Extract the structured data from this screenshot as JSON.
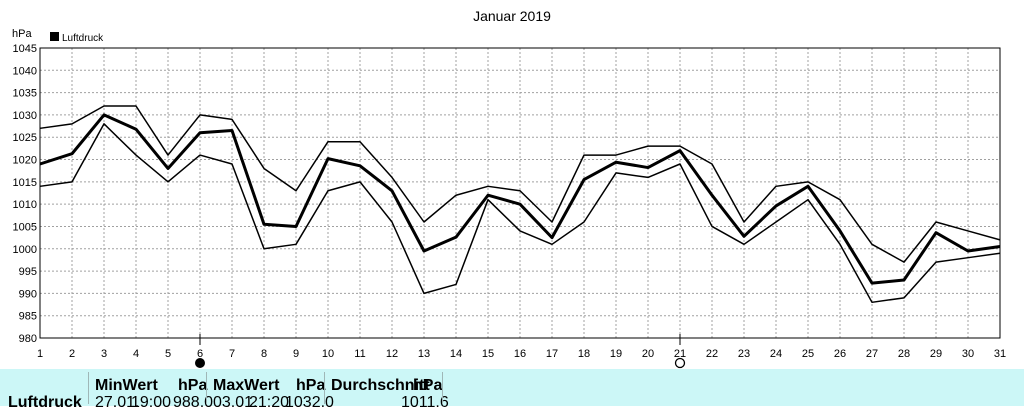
{
  "chart_data": {
    "type": "line",
    "title": "Januar 2019",
    "ylabel": "hPa",
    "legend": "Luftdruck",
    "legend_position": "top-left",
    "grid": true,
    "ylim": [
      980,
      1045
    ],
    "yticks": [
      980,
      985,
      990,
      995,
      1000,
      1005,
      1010,
      1015,
      1020,
      1025,
      1030,
      1035,
      1040,
      1045
    ],
    "x": [
      1,
      2,
      3,
      4,
      5,
      6,
      7,
      8,
      9,
      10,
      11,
      12,
      13,
      14,
      15,
      16,
      17,
      18,
      19,
      20,
      21,
      22,
      23,
      24,
      25,
      26,
      27,
      28,
      29,
      30,
      31
    ],
    "series": [
      {
        "name": "Luftdruck",
        "role": "mean",
        "values": [
          1019,
          1021.3,
          1030,
          1026.8,
          1018,
          1026,
          1026.5,
          1005.5,
          1005,
          1020.2,
          1018.6,
          1013,
          999.5,
          1002.6,
          1012,
          1010,
          1002.5,
          1015.5,
          1019.4,
          1018.2,
          1022,
          1012,
          1002.8,
          1009.6,
          1014,
          1004,
          992.3,
          993,
          1003.6,
          999.5,
          1000.5
        ]
      },
      {
        "role": "max",
        "values": [
          1027,
          1028,
          1032,
          1032,
          1021,
          1030,
          1029,
          1018,
          1013,
          1024,
          1024,
          1016,
          1006,
          1012,
          1014,
          1013,
          1006,
          1021,
          1021,
          1023,
          1023,
          1019,
          1006,
          1014,
          1015,
          1011,
          1001,
          997,
          1006,
          1004,
          1002
        ]
      },
      {
        "role": "min",
        "values": [
          1014,
          1015,
          1028,
          1021,
          1015,
          1021,
          1019,
          1000,
          1001,
          1013,
          1015,
          1006,
          990,
          992,
          1011,
          1004,
          1001,
          1006,
          1017,
          1016,
          1019,
          1005,
          1001,
          1006,
          1011,
          1001,
          988,
          989,
          997,
          998,
          999
        ]
      }
    ],
    "moon_phases": [
      {
        "day": 6,
        "phase": "new-moon"
      },
      {
        "day": 21,
        "phase": "full-moon"
      }
    ]
  },
  "stats": {
    "row_label": "Luftdruck",
    "min": {
      "header": "MinWert",
      "unit": "hPa",
      "date": "27.01.",
      "time": "19:00",
      "value": "988.0"
    },
    "max": {
      "header": "MaxWert",
      "unit": "hPa",
      "date": "03.01.",
      "time": "21:20",
      "value": "1032.0"
    },
    "avg": {
      "header": "Durchschnitt",
      "unit": "hPa",
      "value": "1011.6"
    }
  },
  "colors": {
    "grid": "#a0a0a0",
    "line": "#000000",
    "footer_bg": "#ccf7f7"
  }
}
